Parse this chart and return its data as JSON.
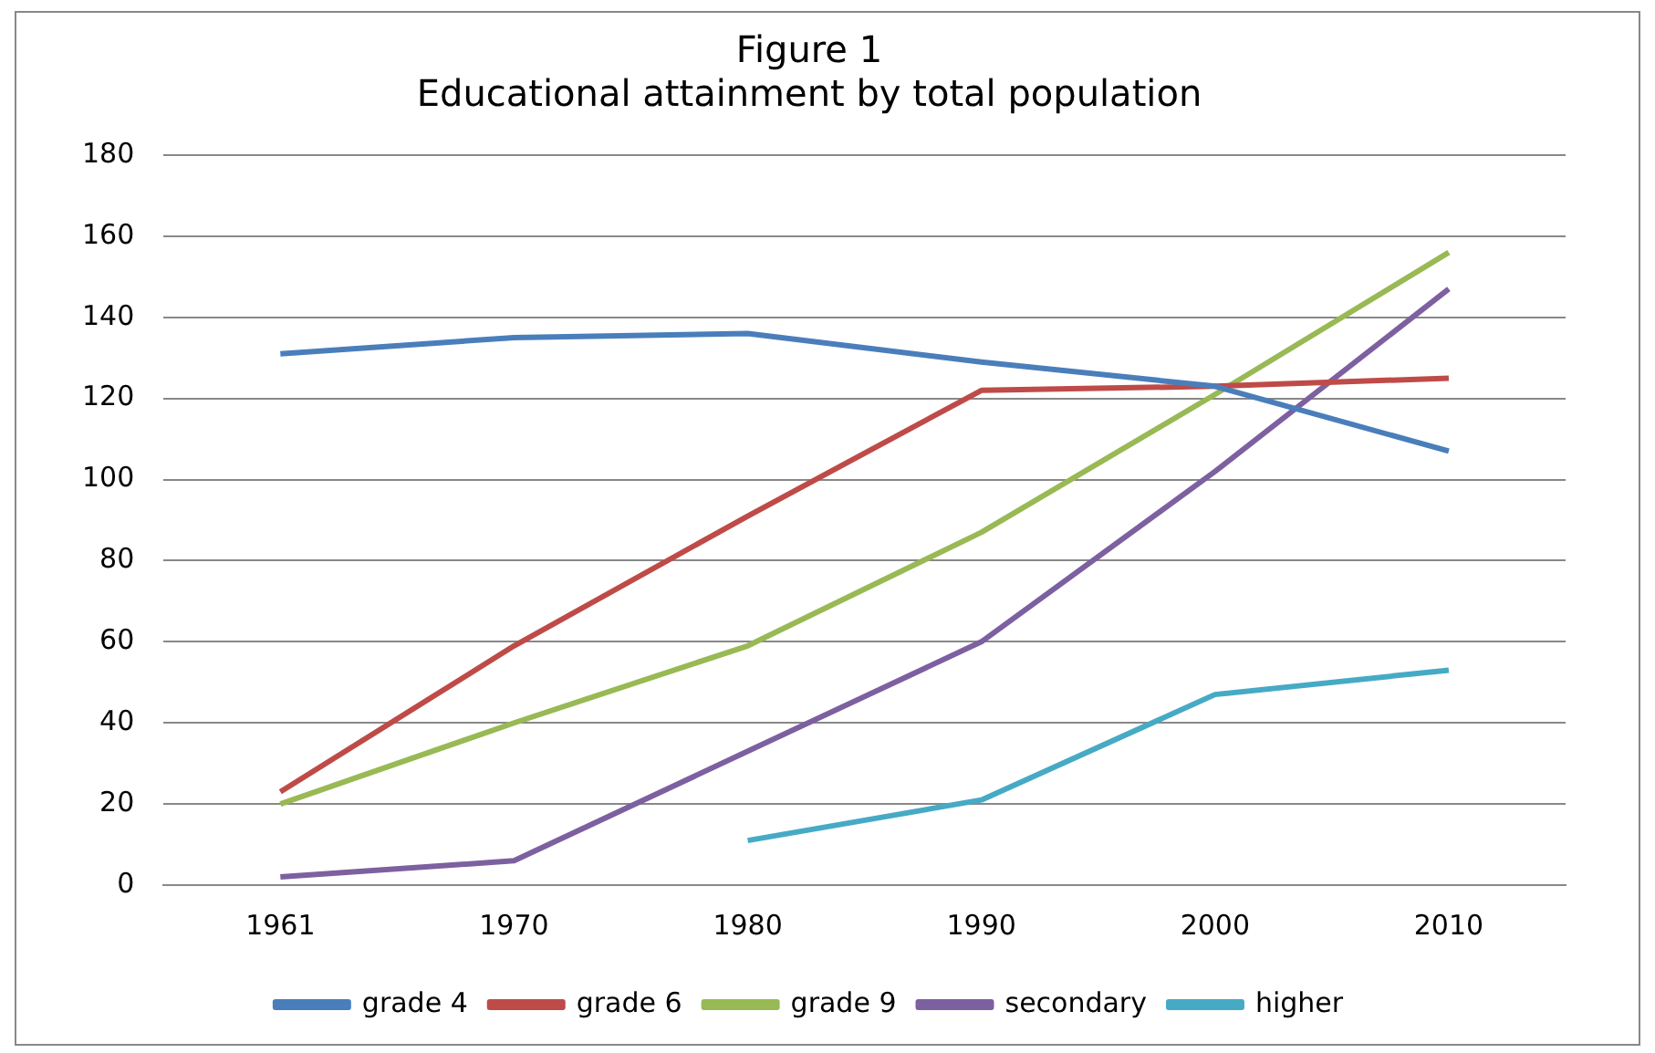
{
  "chart_data": {
    "type": "line",
    "title": "Figure 1",
    "subtitle": "Educational attainment by total population",
    "categories": [
      "1961",
      "1970",
      "1980",
      "1990",
      "2000",
      "2010"
    ],
    "series": [
      {
        "name": "grade 4",
        "color": "#4a7ebb",
        "values": [
          131,
          135,
          136,
          129,
          123,
          107
        ]
      },
      {
        "name": "grade 6",
        "color": "#be4b48",
        "values": [
          23,
          59,
          91,
          122,
          123,
          125
        ]
      },
      {
        "name": "grade 9",
        "color": "#98b954",
        "values": [
          20,
          40,
          59,
          87,
          121,
          156
        ]
      },
      {
        "name": "secondary",
        "color": "#7d60a0",
        "values": [
          2,
          6,
          33,
          60,
          102,
          147
        ]
      },
      {
        "name": "higher",
        "color": "#46aac5",
        "values": [
          null,
          null,
          11,
          21,
          47,
          53
        ]
      }
    ],
    "ylim": [
      0,
      180
    ],
    "yticks": [
      0,
      20,
      40,
      60,
      80,
      100,
      120,
      140,
      160,
      180
    ],
    "grid": "y",
    "legend": "bottom",
    "marker": "none",
    "line_style": "solid"
  }
}
